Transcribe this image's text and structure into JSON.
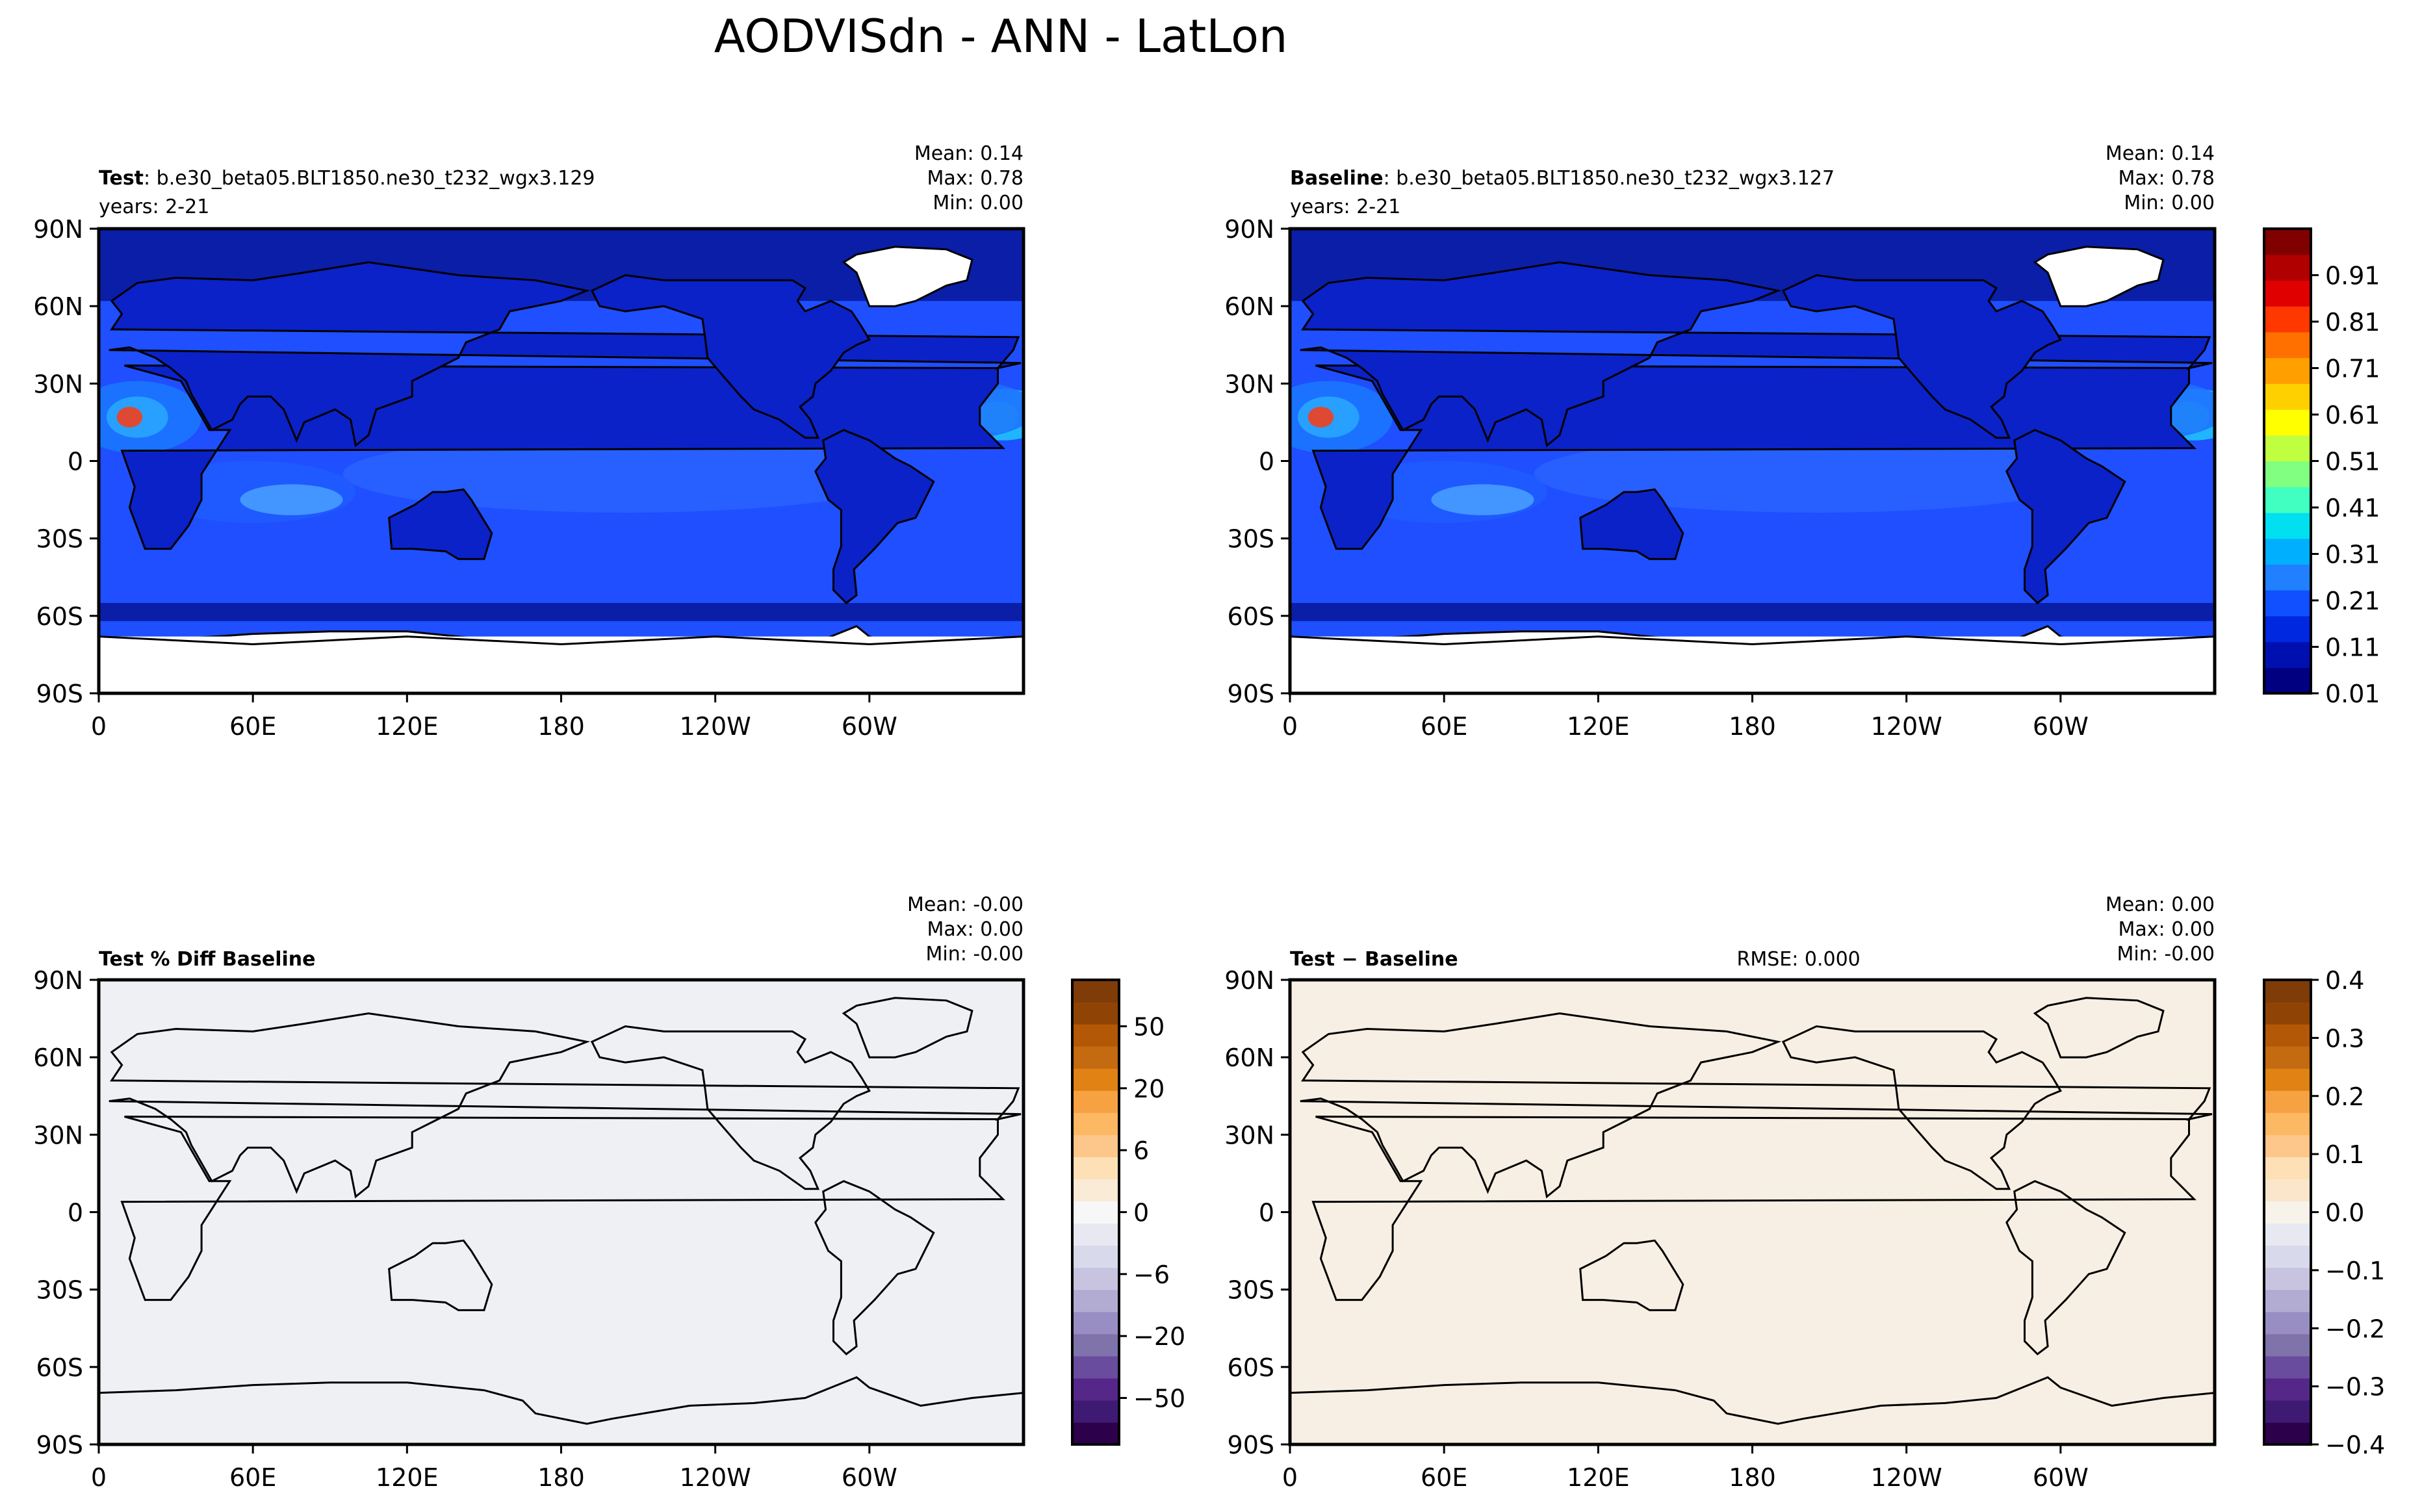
{
  "figure_title": "AODVISdn - ANN - LatLon",
  "chart_data": [
    {
      "type": "heatmap",
      "panel": "test",
      "title_bold": "Test",
      "title_rest": ": b.e30_beta05.BLT1850.ne30_t232_wgx3.129",
      "subtitle": "years: 2-21",
      "stats": {
        "mean": "Mean:  0.14",
        "max": "Max:  0.78",
        "min": "Min:  0.00"
      },
      "xticks": [
        "0",
        "60E",
        "120E",
        "180",
        "120W",
        "60W"
      ],
      "yticks": [
        "90N",
        "60N",
        "30N",
        "0",
        "30S",
        "60S",
        "90S"
      ],
      "xlim": [
        0,
        360
      ],
      "ylim": [
        -90,
        90
      ],
      "ocean_color": "#1f4fff",
      "land_color": "#0b22c8"
    },
    {
      "type": "heatmap",
      "panel": "baseline",
      "title_bold": "Baseline",
      "title_rest": ": b.e30_beta05.BLT1850.ne30_t232_wgx3.127",
      "subtitle": "years: 2-21",
      "stats": {
        "mean": "Mean:  0.14",
        "max": "Max:  0.78",
        "min": "Min:  0.00"
      },
      "xticks": [
        "0",
        "60E",
        "120E",
        "180",
        "120W",
        "60W"
      ],
      "yticks": [
        "90N",
        "60N",
        "30N",
        "0",
        "30S",
        "60S",
        "90S"
      ],
      "xlim": [
        0,
        360
      ],
      "ylim": [
        -90,
        90
      ],
      "ocean_color": "#1f4fff",
      "land_color": "#0b22c8",
      "colorbar": {
        "ticks": [
          "0.01",
          "0.11",
          "0.21",
          "0.31",
          "0.41",
          "0.51",
          "0.61",
          "0.71",
          "0.81",
          "0.91"
        ],
        "colors": [
          "#000080",
          "#0010b0",
          "#0028e0",
          "#1050ff",
          "#2080ff",
          "#00b0ff",
          "#00e0f0",
          "#40ffc0",
          "#80ff80",
          "#c0ff40",
          "#ffff00",
          "#ffd000",
          "#ffa000",
          "#ff7000",
          "#ff3800",
          "#e00000",
          "#b00000",
          "#800000"
        ]
      }
    },
    {
      "type": "heatmap",
      "panel": "pct_diff",
      "title_bold": "Test % Diff Baseline",
      "title_rest": "",
      "stats": {
        "mean": "Mean: -0.00",
        "max": "Max:  0.00",
        "min": "Min: -0.00"
      },
      "xticks": [
        "0",
        "60E",
        "120E",
        "180",
        "120W",
        "60W"
      ],
      "yticks": [
        "90N",
        "60N",
        "30N",
        "0",
        "30S",
        "60S",
        "90S"
      ],
      "xlim": [
        0,
        360
      ],
      "ylim": [
        -90,
        90
      ],
      "field_color": "#eff0f4",
      "colorbar": {
        "ticks": [
          "50",
          "20",
          "6",
          "0",
          "−6",
          "−20",
          "−50"
        ],
        "colors": [
          "#2d004b",
          "#3f1a73",
          "#542788",
          "#6a4c9e",
          "#8073ac",
          "#998ec3",
          "#b2abd2",
          "#c8c4e0",
          "#d8daeb",
          "#e8e8f2",
          "#f7f7f7",
          "#f9ebd6",
          "#fee0b6",
          "#fdc68a",
          "#fdb863",
          "#f6a243",
          "#e08214",
          "#c46a10",
          "#b35806",
          "#8f4406",
          "#7f3b08"
        ]
      }
    },
    {
      "type": "heatmap",
      "panel": "diff",
      "title_bold": "Test − Baseline",
      "title_rest": "",
      "rmse": "RMSE: 0.000",
      "stats": {
        "mean": "Mean:  0.00",
        "max": "Max:  0.00",
        "min": "Min: -0.00"
      },
      "xticks": [
        "0",
        "60E",
        "120E",
        "180",
        "120W",
        "60W"
      ],
      "yticks": [
        "90N",
        "60N",
        "30N",
        "0",
        "30S",
        "60S",
        "90S"
      ],
      "xlim": [
        0,
        360
      ],
      "ylim": [
        -90,
        90
      ],
      "field_color": "#f7efe3",
      "colorbar": {
        "ticks": [
          "0.4",
          "0.3",
          "0.2",
          "0.1",
          "0.0",
          "−0.1",
          "−0.2",
          "−0.3",
          "−0.4"
        ],
        "colors": [
          "#2d004b",
          "#3f1a73",
          "#542788",
          "#6a4c9e",
          "#8073ac",
          "#998ec3",
          "#b2abd2",
          "#c8c4e0",
          "#d8daeb",
          "#e8e8f2",
          "#f7f2ea",
          "#fbe6cc",
          "#fee0b6",
          "#fdc68a",
          "#fdb863",
          "#f6a243",
          "#e08214",
          "#c46a10",
          "#b35806",
          "#8f4406",
          "#7f3b08"
        ]
      }
    }
  ]
}
